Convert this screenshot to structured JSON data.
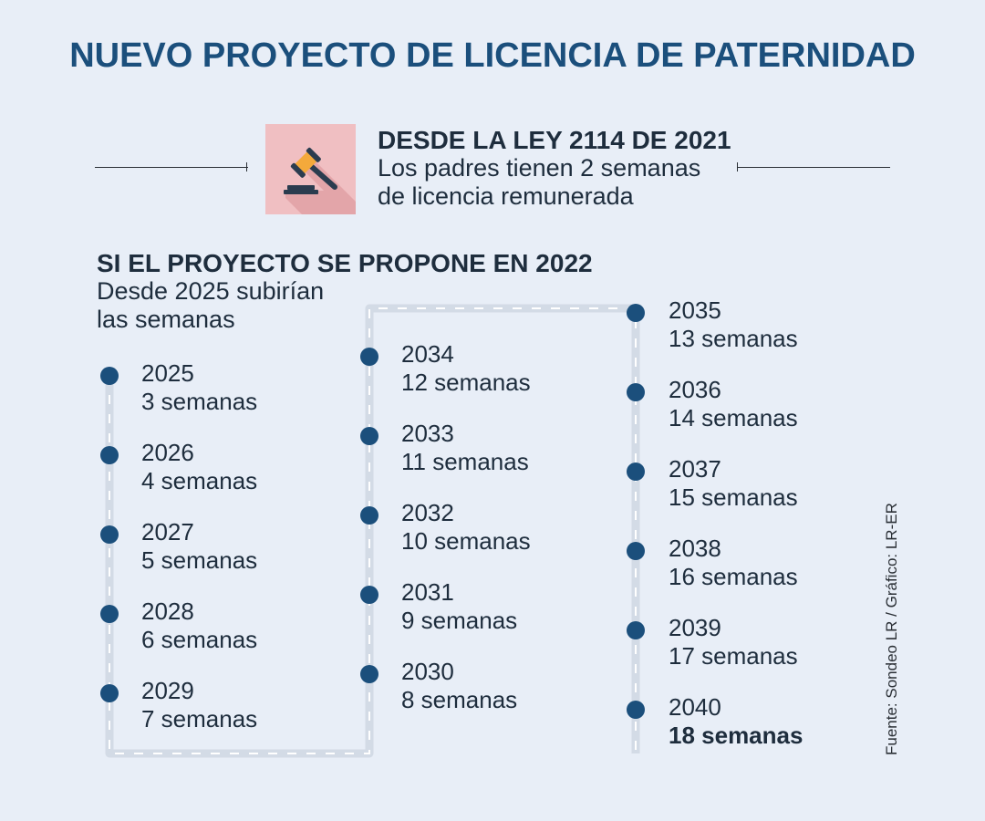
{
  "title": "NUEVO PROYECTO DE LICENCIA DE PATERNIDAD",
  "law": {
    "heading": "DESDE LA LEY 2114 DE 2021",
    "line1": "Los padres tienen 2 semanas",
    "line2": "de licencia remunerada",
    "icon": "gavel-icon"
  },
  "section": {
    "heading": "SI EL PROYECTO SE PROPONE EN 2022",
    "line1": "Desde 2025 subirían",
    "line2": "las semanas"
  },
  "timeline": {
    "col1": [
      {
        "year": "2025",
        "weeks": "3 semanas"
      },
      {
        "year": "2026",
        "weeks": "4 semanas"
      },
      {
        "year": "2027",
        "weeks": "5 semanas"
      },
      {
        "year": "2028",
        "weeks": "6 semanas"
      },
      {
        "year": "2029",
        "weeks": "7 semanas"
      }
    ],
    "col2": [
      {
        "year": "2034",
        "weeks": "12 semanas"
      },
      {
        "year": "2033",
        "weeks": "11 semanas"
      },
      {
        "year": "2032",
        "weeks": "10 semanas"
      },
      {
        "year": "2031",
        "weeks": "9 semanas"
      },
      {
        "year": "2030",
        "weeks": "8 semanas"
      }
    ],
    "col3": [
      {
        "year": "2035",
        "weeks": "13 semanas"
      },
      {
        "year": "2036",
        "weeks": "14 semanas"
      },
      {
        "year": "2037",
        "weeks": "15 semanas"
      },
      {
        "year": "2038",
        "weeks": "16 semanas"
      },
      {
        "year": "2039",
        "weeks": "17 semanas"
      },
      {
        "year": "2040",
        "weeks": "18 semanas"
      }
    ]
  },
  "source": "Fuente: Sondeo LR / Gráfico: LR-ER",
  "colors": {
    "accent": "#1b4f7c",
    "background": "#e8eef7",
    "track": "#d3dbe6",
    "icon_bg": "#f0bfc2"
  }
}
